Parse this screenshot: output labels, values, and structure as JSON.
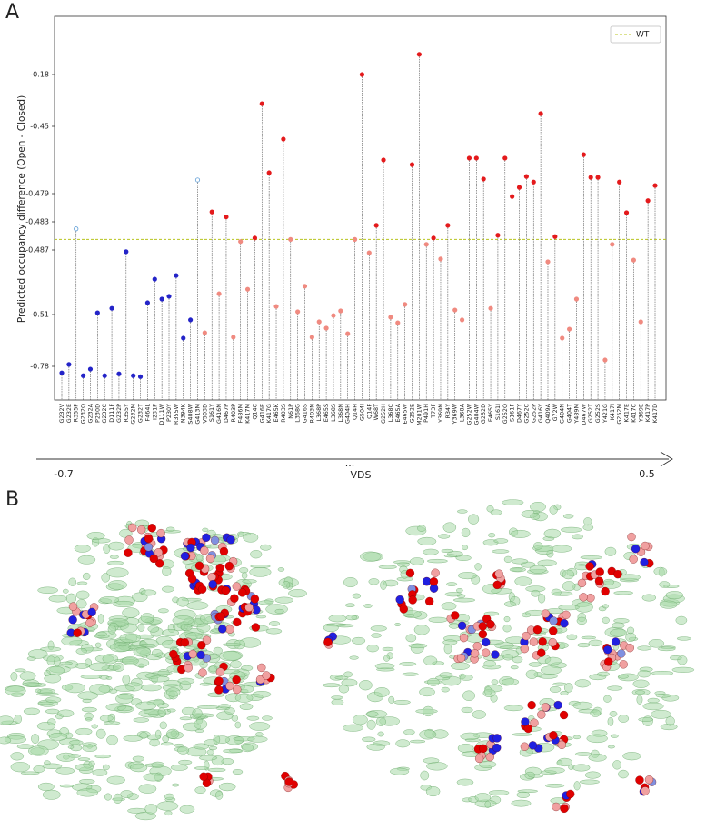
{
  "panels": [
    "A",
    "B"
  ],
  "chart_data": {
    "type": "lollipop",
    "ylabel": "Predicted occupancy difference (Open - Closed)",
    "categories": [
      "G232V",
      "G232E",
      "R355F",
      "G232Q",
      "G232A",
      "P230D",
      "G232C",
      "D111F",
      "G232P",
      "R355Y",
      "G232M",
      "G232T",
      "F464L",
      "I231P",
      "D111W",
      "P230Y",
      "R355W",
      "N394K",
      "S408W",
      "G413M",
      "V503D",
      "S161Y",
      "G416N",
      "D467P",
      "R403P",
      "F486M",
      "K417M",
      "Q14C",
      "G416E",
      "K417G",
      "E465K",
      "R403S",
      "N61P",
      "L368G",
      "G416S",
      "R403N",
      "L368P",
      "E465S",
      "L368S",
      "L368N",
      "G404H",
      "Q14H",
      "G504I",
      "Q14F",
      "W68T",
      "G252H",
      "L368C",
      "E465A",
      "E465W",
      "G252E",
      "M201W",
      "P491H",
      "T73F",
      "Y369N",
      "R34Y",
      "Y369W",
      "L368A",
      "G252W",
      "G404W",
      "G252D",
      "E465Y",
      "S161I",
      "G252Q",
      "S161F",
      "D467Y",
      "G252C",
      "G252P",
      "G416Y",
      "Q409A",
      "G72W",
      "G404N",
      "G404T",
      "Y489M",
      "D467W",
      "G252T",
      "G252S",
      "Y421G",
      "K417I",
      "G252M",
      "K417E",
      "K417C",
      "Y369E",
      "K417P",
      "K417D"
    ],
    "values": [
      -0.813,
      -0.77,
      -0.484,
      -0.827,
      -0.794,
      -0.5094,
      -0.827,
      -0.5078,
      -0.818,
      -0.4876,
      -0.827,
      -0.832,
      -0.5058,
      -0.4974,
      -0.5045,
      -0.5035,
      -0.4961,
      -0.633,
      -0.538,
      -0.4731,
      -0.605,
      -0.4816,
      -0.5026,
      -0.4823,
      -0.628,
      -0.4858,
      -0.501,
      -0.4853,
      -0.332,
      -0.47,
      -0.5071,
      -0.4555,
      -0.4855,
      -0.509,
      -0.4999,
      -0.628,
      -0.548,
      -0.581,
      -0.515,
      -0.5087,
      -0.61,
      -0.4855,
      -0.18,
      -0.488,
      -0.4835,
      -0.4645,
      -0.524,
      -0.553,
      -0.5064,
      -0.4665,
      -0.076,
      -0.4862,
      -0.4853,
      -0.4902,
      -0.4835,
      -0.5084,
      -0.538,
      -0.4637,
      -0.4637,
      -0.4727,
      -0.5078,
      -0.4849,
      -0.4637,
      -0.4794,
      -0.4763,
      -0.4716,
      -0.474,
      -0.3837,
      -0.4912,
      -0.4851,
      -0.633,
      -0.586,
      -0.5045,
      -0.4622,
      -0.472,
      -0.472,
      -0.747,
      -0.4862,
      -0.474,
      -0.4817,
      -0.4906,
      -0.548,
      -0.48,
      -0.4755
    ],
    "colors": [
      "#2424c8",
      "#2424c8",
      "#5b9bd5",
      "#2424c8",
      "#2424c8",
      "#2424c8",
      "#2424c8",
      "#2424c8",
      "#2424c8",
      "#2424c8",
      "#2424c8",
      "#2424c8",
      "#2424c8",
      "#2424c8",
      "#2424c8",
      "#2424c8",
      "#2424c8",
      "#2424c8",
      "#2424c8",
      "#5b9bd5",
      "#f08a80",
      "#e41a1c",
      "#f08a80",
      "#e41a1c",
      "#f08a80",
      "#f08a80",
      "#f08a80",
      "#e41a1c",
      "#e41a1c",
      "#e41a1c",
      "#f08a80",
      "#e41a1c",
      "#f08a80",
      "#f08a80",
      "#f08a80",
      "#f08a80",
      "#f08a80",
      "#f08a80",
      "#f08a80",
      "#f08a80",
      "#f08a80",
      "#f08a80",
      "#e41a1c",
      "#f08a80",
      "#e41a1c",
      "#e41a1c",
      "#f08a80",
      "#f08a80",
      "#f08a80",
      "#e41a1c",
      "#e41a1c",
      "#f08a80",
      "#e41a1c",
      "#f08a80",
      "#e41a1c",
      "#f08a80",
      "#f08a80",
      "#e41a1c",
      "#e41a1c",
      "#e41a1c",
      "#f08a80",
      "#e41a1c",
      "#e41a1c",
      "#e41a1c",
      "#e41a1c",
      "#e41a1c",
      "#e41a1c",
      "#e41a1c",
      "#f08a80",
      "#e41a1c",
      "#f08a80",
      "#f08a80",
      "#f08a80",
      "#e41a1c",
      "#e41a1c",
      "#e41a1c",
      "#f08a80",
      "#f08a80",
      "#e41a1c",
      "#e41a1c",
      "#f08a80",
      "#f08a80",
      "#e41a1c",
      "#e41a1c"
    ],
    "ylim": [
      -0.95,
      0.12
    ],
    "yticks": [
      -0.78,
      -0.51,
      -0.487,
      -0.483,
      -0.479,
      -0.45,
      -0.18
    ],
    "reference_line": {
      "name": "WT",
      "value": -0.4855,
      "color": "#b8c41e"
    },
    "legend": "upper right",
    "vds_axis": {
      "start": "-0.7",
      "middle": "...",
      "end": "0.5",
      "title": "VDS"
    }
  }
}
